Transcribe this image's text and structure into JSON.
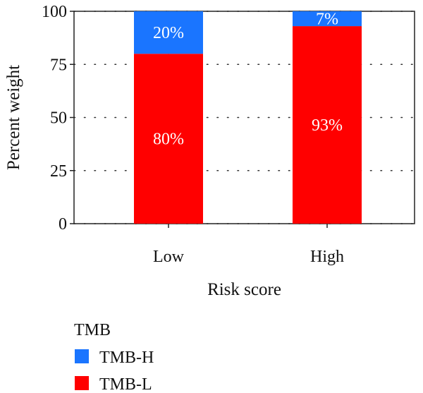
{
  "chart_data": {
    "type": "bar",
    "stacked": true,
    "categories": [
      "Low",
      "High"
    ],
    "series": [
      {
        "name": "TMB-L",
        "values": [
          80,
          93
        ],
        "labels": [
          "80%",
          "93%"
        ],
        "color": "#ff0000"
      },
      {
        "name": "TMB-H",
        "values": [
          20,
          7
        ],
        "labels": [
          "20%",
          "7%"
        ],
        "color": "#1a75ff"
      }
    ],
    "xlabel": "Risk score",
    "ylabel": "Percent weight",
    "ylim": [
      0,
      100
    ],
    "yticks": [
      0,
      25,
      50,
      75,
      100
    ],
    "grid": true,
    "legend": {
      "title": "TMB",
      "position": "bottom-left",
      "entries": [
        {
          "name": "TMB-H",
          "color": "#1a75ff"
        },
        {
          "name": "TMB-L",
          "color": "#ff0000"
        }
      ]
    }
  }
}
